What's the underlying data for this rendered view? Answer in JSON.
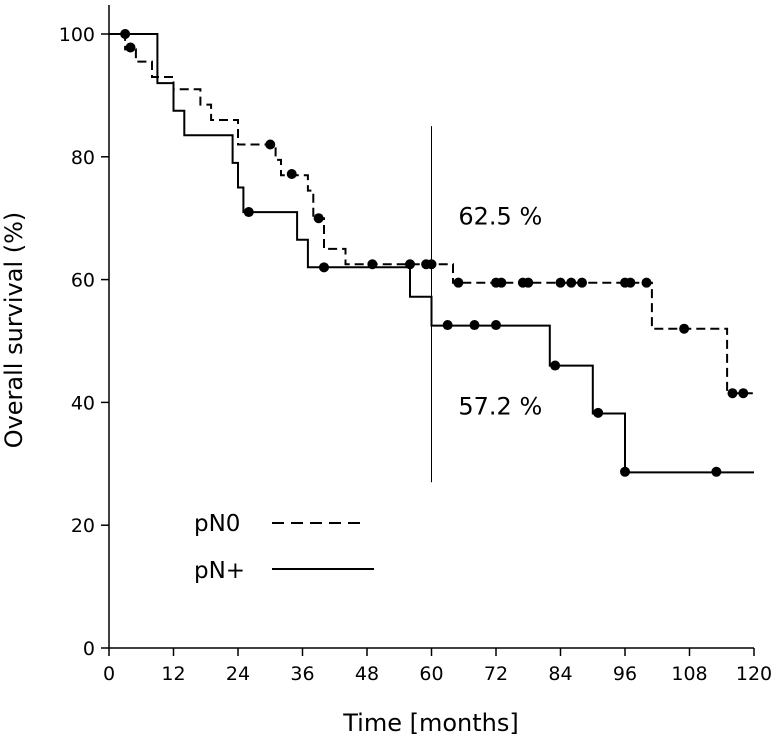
{
  "chart_data": {
    "type": "line",
    "subtype": "kaplan-meier",
    "title": "",
    "xlabel": "Time [months]",
    "ylabel": "Overall survival (%)",
    "xlim": [
      0,
      120
    ],
    "ylim": [
      0,
      100
    ],
    "xticks": [
      0,
      12,
      24,
      36,
      48,
      60,
      72,
      84,
      96,
      108,
      120
    ],
    "yticks": [
      0,
      20,
      40,
      60,
      80,
      100
    ],
    "grid": false,
    "legend_position": "bottom-left",
    "reference_line": {
      "x": 60,
      "y_from": 27,
      "y_to": 85
    },
    "annotations": [
      {
        "text": "62.5 %",
        "x": 65,
        "y": 69
      },
      {
        "text": "57.2 %",
        "x": 65,
        "y": 38
      }
    ],
    "series": [
      {
        "name": "pN0",
        "style": "dashed",
        "steps": [
          [
            0,
            100
          ],
          [
            3,
            100
          ],
          [
            3,
            97.5
          ],
          [
            5,
            97.5
          ],
          [
            5,
            95.5
          ],
          [
            8,
            95.5
          ],
          [
            8,
            93
          ],
          [
            12,
            93
          ],
          [
            12,
            91
          ],
          [
            17,
            91
          ],
          [
            17,
            88.5
          ],
          [
            19,
            88.5
          ],
          [
            19,
            86
          ],
          [
            24,
            86
          ],
          [
            24,
            82
          ],
          [
            31,
            82
          ],
          [
            31,
            79.5
          ],
          [
            32,
            79.5
          ],
          [
            32,
            77
          ],
          [
            37,
            77
          ],
          [
            37,
            74.5
          ],
          [
            38,
            74.5
          ],
          [
            38,
            70
          ],
          [
            40,
            70
          ],
          [
            40,
            65
          ],
          [
            44,
            65
          ],
          [
            44,
            62.5
          ],
          [
            60,
            62.5
          ],
          [
            60,
            62.5
          ],
          [
            64,
            62.5
          ],
          [
            64,
            59.5
          ],
          [
            101,
            59.5
          ],
          [
            101,
            52
          ],
          [
            115,
            52
          ],
          [
            115,
            41.5
          ],
          [
            120,
            41.5
          ]
        ],
        "censored": [
          [
            3,
            100
          ],
          [
            4,
            97.8
          ],
          [
            30,
            82
          ],
          [
            34,
            77.2
          ],
          [
            39,
            70
          ],
          [
            49,
            62.5
          ],
          [
            56,
            62.5
          ],
          [
            59,
            62.5
          ],
          [
            60,
            62.5
          ],
          [
            65,
            59.5
          ],
          [
            72,
            59.5
          ],
          [
            73,
            59.5
          ],
          [
            77,
            59.5
          ],
          [
            78,
            59.5
          ],
          [
            84,
            59.5
          ],
          [
            86,
            59.5
          ],
          [
            88,
            59.5
          ],
          [
            96,
            59.5
          ],
          [
            97,
            59.5
          ],
          [
            100,
            59.5
          ],
          [
            107,
            52
          ],
          [
            116,
            41.5
          ],
          [
            118,
            41.5
          ]
        ]
      },
      {
        "name": "pN+",
        "style": "solid",
        "steps": [
          [
            0,
            100
          ],
          [
            9,
            100
          ],
          [
            9,
            92
          ],
          [
            12,
            92
          ],
          [
            12,
            87.5
          ],
          [
            14,
            87.5
          ],
          [
            14,
            83.5
          ],
          [
            23,
            83.5
          ],
          [
            23,
            79
          ],
          [
            24,
            79
          ],
          [
            24,
            75
          ],
          [
            25,
            75
          ],
          [
            25,
            71
          ],
          [
            35,
            71
          ],
          [
            35,
            66.5
          ],
          [
            37,
            66.5
          ],
          [
            37,
            62
          ],
          [
            56,
            62
          ],
          [
            56,
            57.2
          ],
          [
            60,
            57.2
          ],
          [
            60,
            52.5
          ],
          [
            82,
            52.5
          ],
          [
            82,
            46
          ],
          [
            90,
            46
          ],
          [
            90,
            38.2
          ],
          [
            96,
            38.2
          ],
          [
            96,
            28.6
          ],
          [
            120,
            28.6
          ]
        ],
        "censored": [
          [
            26,
            71
          ],
          [
            40,
            62
          ],
          [
            63,
            52.6
          ],
          [
            68,
            52.6
          ],
          [
            72,
            52.6
          ],
          [
            83,
            46
          ],
          [
            91,
            38.3
          ],
          [
            96,
            28.7
          ],
          [
            113,
            28.7
          ]
        ]
      }
    ]
  }
}
